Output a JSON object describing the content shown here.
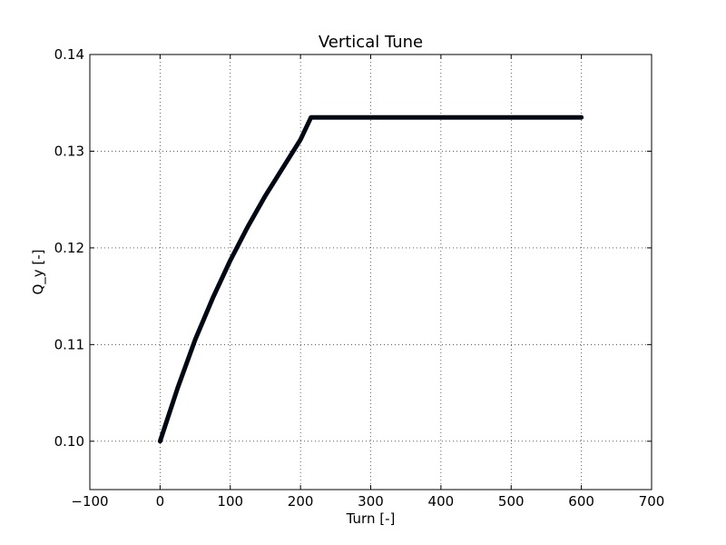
{
  "chart_data": {
    "type": "line",
    "title": "Vertical Tune",
    "xlabel": "Turn [-]",
    "ylabel": "Q_y [-]",
    "xlim": [
      -100,
      700
    ],
    "ylim": [
      0.095,
      0.14
    ],
    "xticks": [
      -100,
      0,
      100,
      200,
      300,
      400,
      500,
      600,
      700
    ],
    "xtick_labels": [
      "−100",
      "0",
      "100",
      "200",
      "300",
      "400",
      "500",
      "600",
      "700"
    ],
    "yticks": [
      0.1,
      0.11,
      0.12,
      0.13,
      0.14
    ],
    "ytick_labels": [
      "0.10",
      "0.11",
      "0.12",
      "0.13",
      "0.14"
    ],
    "grid": true,
    "series": [
      {
        "color": "#000814",
        "x": [
          0,
          25,
          50,
          75,
          100,
          125,
          150,
          175,
          200,
          215,
          250,
          300,
          350,
          400,
          450,
          500,
          550,
          600
        ],
        "y": [
          0.1,
          0.1055,
          0.1105,
          0.1148,
          0.1187,
          0.1222,
          0.1254,
          0.1283,
          0.1312,
          0.1335,
          0.1335,
          0.1335,
          0.1335,
          0.1335,
          0.1335,
          0.1335,
          0.1335,
          0.1335
        ]
      }
    ]
  }
}
